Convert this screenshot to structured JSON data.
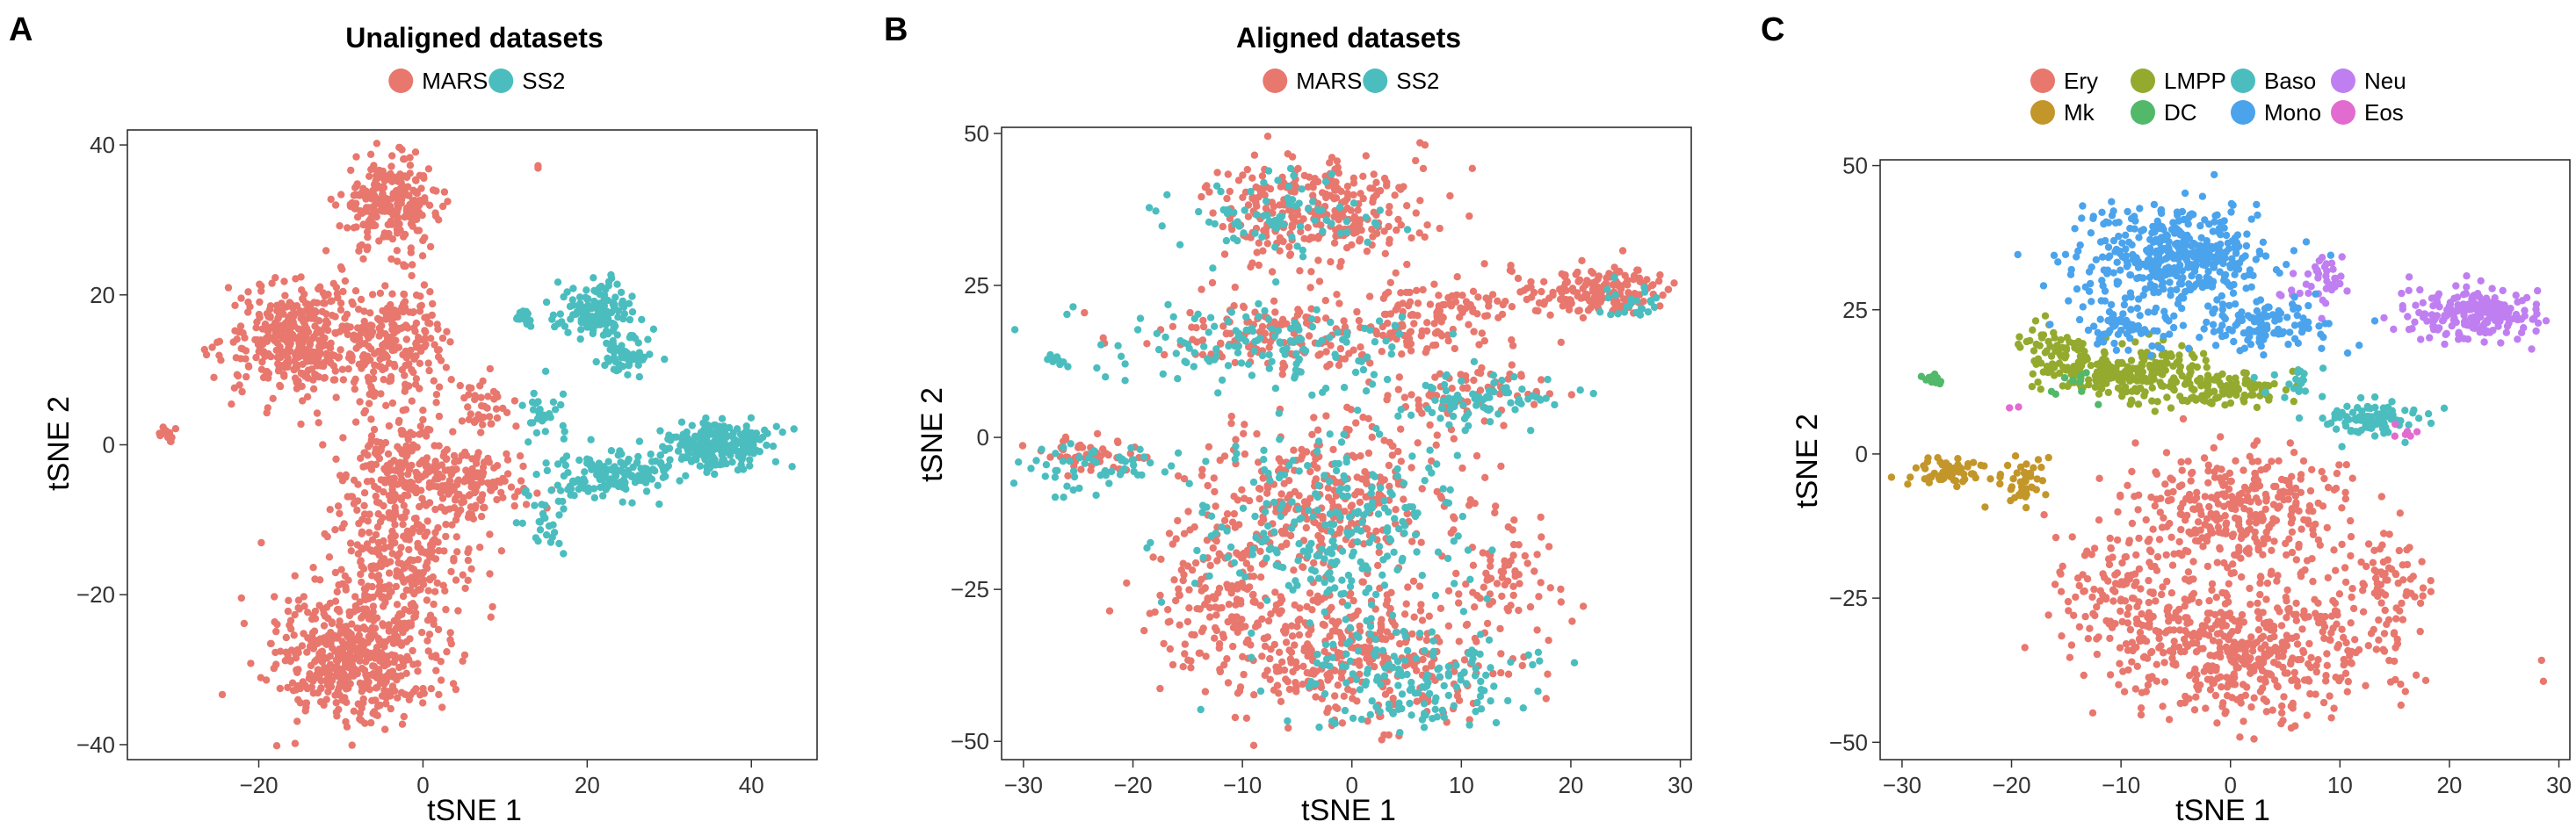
{
  "chart_data": [
    {
      "panel": "A",
      "type": "scatter",
      "title": "Unaligned datasets",
      "xlabel": "tSNE 1",
      "ylabel": "tSNE 2",
      "xlim": [
        -36,
        48
      ],
      "ylim": [
        -42,
        42
      ],
      "xticks": [
        -20,
        0,
        20,
        40
      ],
      "yticks": [
        -40,
        -20,
        0,
        20,
        40
      ],
      "xtick_labels": [
        "−20",
        "0",
        "20",
        "40"
      ],
      "ytick_labels": [
        "−40",
        "−20",
        "0",
        "20",
        "40"
      ],
      "legend_position": "top",
      "series": [
        {
          "name": "MARS",
          "color": "#E8776E",
          "clusters": [
            {
              "cx": -4,
              "cy": 32,
              "sx": 4,
              "sy": 4,
              "n": 260
            },
            {
              "cx": -15,
              "cy": 14,
              "sx": 6,
              "sy": 5,
              "n": 380
            },
            {
              "cx": -3,
              "cy": 14,
              "sx": 4,
              "sy": 5,
              "n": 200
            },
            {
              "cx": -2,
              "cy": -4,
              "sx": 5,
              "sy": 6,
              "n": 240
            },
            {
              "cx": 6,
              "cy": -5,
              "sx": 5,
              "sy": 3,
              "n": 120
            },
            {
              "cx": -8,
              "cy": -28,
              "sx": 7,
              "sy": 6,
              "n": 520
            },
            {
              "cx": -3,
              "cy": -15,
              "sx": 6,
              "sy": 5,
              "n": 200
            },
            {
              "cx": 7,
              "cy": 5,
              "sx": 2,
              "sy": 3,
              "n": 40
            },
            {
              "cx": -31,
              "cy": 1.5,
              "sx": 0.8,
              "sy": 0.8,
              "n": 12
            },
            {
              "cx": 14,
              "cy": 37,
              "sx": 0.3,
              "sy": 0.3,
              "n": 2
            }
          ]
        },
        {
          "name": "SS2",
          "color": "#4BBDBF",
          "clusters": [
            {
              "cx": 36,
              "cy": 0,
              "sx": 4,
              "sy": 2,
              "n": 240
            },
            {
              "cx": 23,
              "cy": -4,
              "sx": 5,
              "sy": 2,
              "n": 150
            },
            {
              "cx": 21,
              "cy": 18,
              "sx": 3,
              "sy": 2.5,
              "n": 130
            },
            {
              "cx": 25,
              "cy": 12,
              "sx": 2,
              "sy": 2,
              "n": 60
            },
            {
              "cx": 12,
              "cy": 17,
              "sx": 1,
              "sy": 1,
              "n": 20
            },
            {
              "cx": 15,
              "cy": 5,
              "sx": 2,
              "sy": 3,
              "n": 30
            },
            {
              "cx": 15,
              "cy": -10,
              "sx": 2,
              "sy": 3,
              "n": 30
            }
          ]
        }
      ]
    },
    {
      "panel": "B",
      "type": "scatter",
      "title": "Aligned datasets",
      "xlabel": "tSNE 1",
      "ylabel": "tSNE 2",
      "xlim": [
        -32,
        31
      ],
      "ylim": [
        -53,
        51
      ],
      "xticks": [
        -30,
        -20,
        -10,
        0,
        10,
        20,
        30
      ],
      "yticks": [
        -50,
        -25,
        0,
        25,
        50
      ],
      "xtick_labels": [
        "−30",
        "−20",
        "−10",
        "0",
        "10",
        "20",
        "30"
      ],
      "ytick_labels": [
        "−50",
        "−25",
        "0",
        "25",
        "50"
      ],
      "legend_position": "top",
      "series": [
        {
          "name": "MARS",
          "color": "#E8776E",
          "clusters": [
            {
              "cx": -3,
              "cy": 37,
              "sx": 6,
              "sy": 6,
              "n": 300
            },
            {
              "cx": 22,
              "cy": 24,
              "sx": 5,
              "sy": 3,
              "n": 170
            },
            {
              "cx": -6,
              "cy": 17,
              "sx": 8,
              "sy": 4,
              "n": 160
            },
            {
              "cx": 8,
              "cy": 20,
              "sx": 5,
              "sy": 4,
              "n": 120
            },
            {
              "cx": 10,
              "cy": 7,
              "sx": 5,
              "sy": 3,
              "n": 80
            },
            {
              "cx": -24,
              "cy": -3,
              "sx": 4,
              "sy": 2,
              "n": 50
            },
            {
              "cx": -2,
              "cy": -10,
              "sx": 8,
              "sy": 8,
              "n": 320
            },
            {
              "cx": 0,
              "cy": -35,
              "sx": 9,
              "sy": 8,
              "n": 420
            },
            {
              "cx": 14,
              "cy": -22,
              "sx": 3,
              "sy": 6,
              "n": 60
            },
            {
              "cx": -12,
              "cy": -25,
              "sx": 4,
              "sy": 7,
              "n": 120
            }
          ]
        },
        {
          "name": "SS2",
          "color": "#4BBDBF",
          "clusters": [
            {
              "cx": -6,
              "cy": 37,
              "sx": 6,
              "sy": 5,
              "n": 80
            },
            {
              "cx": -8,
              "cy": 15,
              "sx": 9,
              "sy": 5,
              "n": 140
            },
            {
              "cx": 12,
              "cy": 6,
              "sx": 5,
              "sy": 3,
              "n": 80
            },
            {
              "cx": -24,
              "cy": -5,
              "sx": 5,
              "sy": 3,
              "n": 60
            },
            {
              "cx": -2,
              "cy": -15,
              "sx": 8,
              "sy": 10,
              "n": 250
            },
            {
              "cx": 5,
              "cy": -40,
              "sx": 8,
              "sy": 6,
              "n": 160
            },
            {
              "cx": 26,
              "cy": 22,
              "sx": 2,
              "sy": 2,
              "n": 25
            },
            {
              "cx": -27,
              "cy": 13,
              "sx": 0.8,
              "sy": 1,
              "n": 10
            }
          ]
        }
      ]
    },
    {
      "panel": "C",
      "type": "scatter",
      "title": "",
      "xlabel": "tSNE 1",
      "ylabel": "tSNE 2",
      "xlim": [
        -32,
        31
      ],
      "ylim": [
        -53,
        51
      ],
      "xticks": [
        -30,
        -20,
        -10,
        0,
        10,
        20,
        30
      ],
      "yticks": [
        -50,
        -25,
        0,
        25,
        50
      ],
      "xtick_labels": [
        "−30",
        "−20",
        "−10",
        "0",
        "10",
        "20",
        "30"
      ],
      "ytick_labels": [
        "−50",
        "−25",
        "0",
        "25",
        "50"
      ],
      "legend_position": "top",
      "legend_rows": [
        [
          "Ery",
          "LMPP",
          "Baso",
          "Neu"
        ],
        [
          "Mk",
          "DC",
          "Mono",
          "Eos"
        ]
      ],
      "series": [
        {
          "name": "Ery",
          "color": "#E8776E",
          "clusters": [
            {
              "cx": 0,
              "cy": -10,
              "sx": 7,
              "sy": 7,
              "n": 340
            },
            {
              "cx": 2,
              "cy": -34,
              "sx": 9,
              "sy": 8,
              "n": 500
            },
            {
              "cx": 14,
              "cy": -22,
              "sx": 3,
              "sy": 5,
              "n": 60
            },
            {
              "cx": -10,
              "cy": -25,
              "sx": 4,
              "sy": 7,
              "n": 120
            }
          ]
        },
        {
          "name": "LMPP",
          "color": "#93AA2E",
          "clusters": [
            {
              "cx": -9,
              "cy": 14,
              "sx": 5,
              "sy": 3,
              "n": 220
            },
            {
              "cx": 0,
              "cy": 11,
              "sx": 4,
              "sy": 2,
              "n": 100
            },
            {
              "cx": -16,
              "cy": 18,
              "sx": 2,
              "sy": 3,
              "n": 60
            }
          ]
        },
        {
          "name": "Baso",
          "color": "#4BBDBF",
          "clusters": [
            {
              "cx": 13,
              "cy": 6,
              "sx": 3,
              "sy": 2,
              "n": 90
            },
            {
              "cx": 6,
              "cy": 12,
              "sx": 2,
              "sy": 2,
              "n": 20
            }
          ]
        },
        {
          "name": "Neu",
          "color": "#C07FF0",
          "clusters": [
            {
              "cx": 22,
              "cy": 24,
              "sx": 4,
              "sy": 3,
              "n": 220
            },
            {
              "cx": 8,
              "cy": 30,
              "sx": 2,
              "sy": 3,
              "n": 40
            }
          ]
        },
        {
          "name": "Mk",
          "color": "#C3962A",
          "clusters": [
            {
              "cx": -26,
              "cy": -3,
              "sx": 2.5,
              "sy": 1.5,
              "n": 60
            },
            {
              "cx": -19,
              "cy": -5,
              "sx": 2,
              "sy": 3,
              "n": 45
            }
          ]
        },
        {
          "name": "DC",
          "color": "#52B86A",
          "clusters": [
            {
              "cx": -27,
              "cy": 13,
              "sx": 0.8,
              "sy": 0.8,
              "n": 14
            },
            {
              "cx": -14,
              "cy": 12,
              "sx": 2,
              "sy": 2,
              "n": 10
            }
          ]
        },
        {
          "name": "Mono",
          "color": "#4BA3EC",
          "clusters": [
            {
              "cx": -5,
              "cy": 34,
              "sx": 6,
              "sy": 6,
              "n": 420
            },
            {
              "cx": 3,
              "cy": 22,
              "sx": 5,
              "sy": 3,
              "n": 120
            },
            {
              "cx": -10,
              "cy": 22,
              "sx": 3,
              "sy": 3,
              "n": 60
            }
          ]
        },
        {
          "name": "Eos",
          "color": "#E26BCF",
          "clusters": [
            {
              "cx": 16,
              "cy": 4,
              "sx": 1,
              "sy": 1,
              "n": 6
            },
            {
              "cx": -20,
              "cy": 8,
              "sx": 0.5,
              "sy": 0.5,
              "n": 2
            }
          ]
        }
      ]
    }
  ]
}
